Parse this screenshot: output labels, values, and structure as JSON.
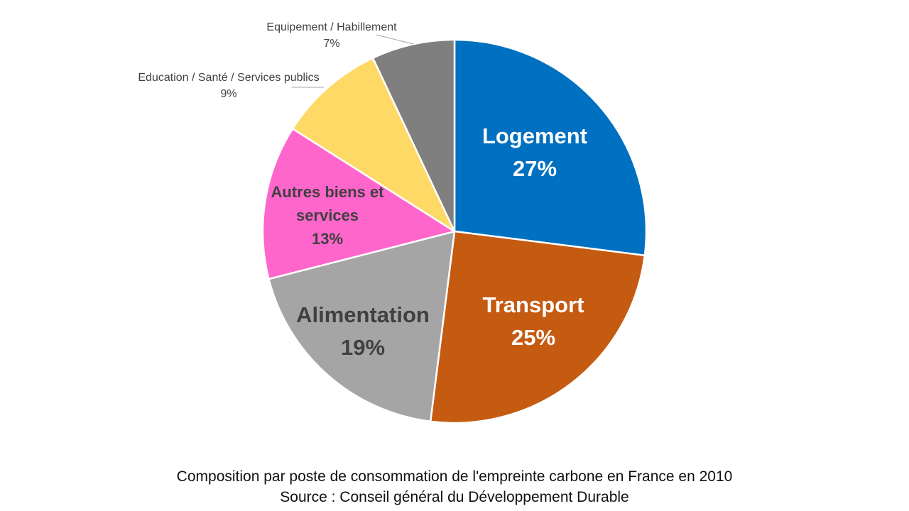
{
  "chart_data": {
    "type": "pie",
    "start_angle_deg": 0,
    "direction": "clockwise",
    "slices": [
      {
        "label": "Logement",
        "value": 27,
        "value_label": "27%",
        "color": "#0070C0",
        "label_color": "#ffffff",
        "label_style": "inside-large"
      },
      {
        "label": "Transport",
        "value": 25,
        "value_label": "25%",
        "color": "#C55A11",
        "label_color": "#ffffff",
        "label_style": "inside-large"
      },
      {
        "label": "Alimentation",
        "value": 19,
        "value_label": "19%",
        "color": "#A5A5A5",
        "label_color": "#404040",
        "label_style": "inside-large"
      },
      {
        "label": "Autres biens et services",
        "value": 13,
        "value_label": "13%",
        "color": "#FF66CC",
        "label_color": "#404040",
        "label_style": "inside-medium"
      },
      {
        "label": "Education / Santé / Services publics",
        "value": 9,
        "value_label": "9%",
        "color": "#FFD966",
        "label_color": "#404040",
        "label_style": "outside"
      },
      {
        "label": "Equipement / Habillement",
        "value": 7,
        "value_label": "7%",
        "color": "#7F7F7F",
        "label_color": "#404040",
        "label_style": "outside"
      }
    ],
    "caption_line1": "Composition par poste de consommation de l'empreinte carbone en France en 2010",
    "caption_line2": "Source : Conseil général du Développement Durable"
  }
}
